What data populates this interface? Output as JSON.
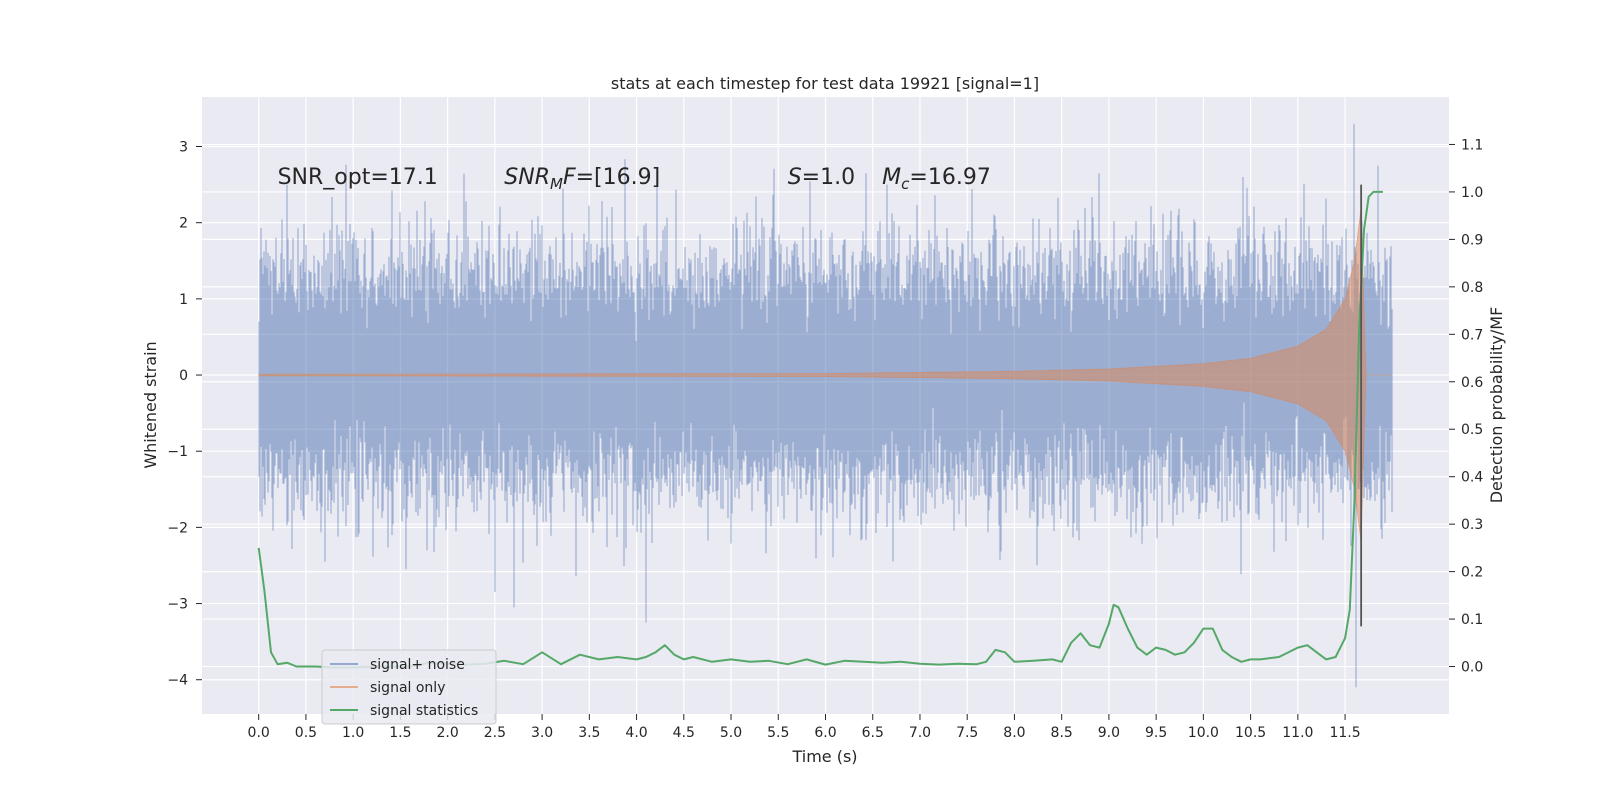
{
  "chart_data": {
    "type": "line",
    "title": "stats at each timestep for test data 19921 [signal=1]",
    "xlabel": "Time (s)",
    "ylabel": "Whitened strain",
    "y2label": "Detection probability/MF",
    "xlim": [
      -0.6,
      12.6
    ],
    "ylim": [
      -4.45,
      3.65
    ],
    "y2lim": [
      -0.1,
      1.2
    ],
    "x_ticks": [
      0.0,
      0.5,
      1.0,
      1.5,
      2.0,
      2.5,
      3.0,
      3.5,
      4.0,
      4.5,
      5.0,
      5.5,
      6.0,
      6.5,
      7.0,
      7.5,
      8.0,
      8.5,
      9.0,
      9.5,
      10.0,
      10.5,
      11.0,
      11.5
    ],
    "x_tick_labels": [
      "0.0",
      "0.5",
      "1.0",
      "1.5",
      "2.0",
      "2.5",
      "3.0",
      "3.5",
      "4.0",
      "4.5",
      "5.0",
      "5.5",
      "6.0",
      "6.5",
      "7.0",
      "7.5",
      "8.0",
      "8.5",
      "9.0",
      "9.5",
      "10.0",
      "10.5",
      "11.0",
      "11.5"
    ],
    "y_ticks": [
      -4,
      -3,
      -2,
      -1,
      0,
      1,
      2,
      3
    ],
    "y_tick_labels": [
      "−4",
      "−3",
      "−2",
      "−1",
      "0",
      "1",
      "2",
      "3"
    ],
    "y2_ticks": [
      0.0,
      0.1,
      0.2,
      0.3,
      0.4,
      0.5,
      0.6,
      0.7,
      0.8,
      0.9,
      1.0,
      1.1
    ],
    "y2_tick_labels": [
      "0.0",
      "0.1",
      "0.2",
      "0.3",
      "0.4",
      "0.5",
      "0.6",
      "0.7",
      "0.8",
      "0.9",
      "1.0",
      "1.1"
    ],
    "grid": true,
    "legend_position": "lower-left",
    "colors": {
      "background": "#eaeaf2",
      "grid": "#ffffff",
      "signal_noise": "#4c72b0",
      "signal_only": "#dd8452",
      "statistics": "#55a868",
      "marker_line": "#555555"
    },
    "annotations": [
      {
        "text": "SNR_opt=17.1",
        "x": 0.2,
        "y": 2.6
      },
      {
        "text": "SNR_MF=[16.9]",
        "x": 2.6,
        "y": 2.6
      },
      {
        "text": "S=1.0",
        "x": 5.6,
        "y": 2.6
      },
      {
        "text": "M_c=16.97",
        "x": 6.6,
        "y": 2.6
      }
    ],
    "marker_line": {
      "x": 11.67,
      "y_from": -3.3,
      "y_to": 2.5
    },
    "series": [
      {
        "name": "signal+ noise",
        "axis": "left",
        "t_range": [
          0.0,
          12.0
        ],
        "sample_rate": 2048,
        "noise_std": 0.72,
        "min": -4.1,
        "max": 3.3,
        "spikes": [
          {
            "x": 0.3,
            "y": 2.5
          },
          {
            "x": 0.7,
            "y": -2.45
          },
          {
            "x": 2.5,
            "y": -2.85
          },
          {
            "x": 2.7,
            "y": -3.05
          },
          {
            "x": 4.1,
            "y": -3.25
          },
          {
            "x": 6.55,
            "y": -2.95
          },
          {
            "x": 6.65,
            "y": 2.5
          },
          {
            "x": 8.9,
            "y": 2.65
          },
          {
            "x": 9.6,
            "y": -2.65
          },
          {
            "x": 11.6,
            "y": 3.3
          },
          {
            "x": 11.62,
            "y": -4.1
          },
          {
            "x": 11.85,
            "y": 2.75
          }
        ]
      },
      {
        "name": "signal only",
        "axis": "left",
        "t_range": [
          0.0,
          12.0
        ],
        "merger_time": 11.67,
        "amplitude_envelope": [
          {
            "x": 0.0,
            "y": 0.01
          },
          {
            "x": 6.0,
            "y": 0.02
          },
          {
            "x": 8.0,
            "y": 0.05
          },
          {
            "x": 9.0,
            "y": 0.08
          },
          {
            "x": 10.0,
            "y": 0.15
          },
          {
            "x": 10.5,
            "y": 0.22
          },
          {
            "x": 11.0,
            "y": 0.38
          },
          {
            "x": 11.3,
            "y": 0.6
          },
          {
            "x": 11.5,
            "y": 1.0
          },
          {
            "x": 11.6,
            "y": 1.5
          },
          {
            "x": 11.67,
            "y": 2.2
          },
          {
            "x": 11.72,
            "y": 0.0
          }
        ]
      },
      {
        "name": "signal statistics",
        "axis": "right",
        "x": [
          0.0,
          0.06,
          0.13,
          0.2,
          0.3,
          0.4,
          0.5,
          0.6,
          0.8,
          1.0,
          1.2,
          1.4,
          1.6,
          1.8,
          2.0,
          2.2,
          2.4,
          2.6,
          2.8,
          3.0,
          3.2,
          3.4,
          3.6,
          3.8,
          4.0,
          4.1,
          4.2,
          4.3,
          4.4,
          4.5,
          4.6,
          4.8,
          5.0,
          5.2,
          5.4,
          5.6,
          5.8,
          6.0,
          6.2,
          6.4,
          6.6,
          6.8,
          7.0,
          7.2,
          7.4,
          7.6,
          7.7,
          7.8,
          7.9,
          8.0,
          8.2,
          8.4,
          8.5,
          8.6,
          8.7,
          8.8,
          8.9,
          9.0,
          9.05,
          9.1,
          9.2,
          9.3,
          9.4,
          9.5,
          9.6,
          9.7,
          9.8,
          9.9,
          10.0,
          10.1,
          10.2,
          10.3,
          10.4,
          10.5,
          10.6,
          10.8,
          11.0,
          11.1,
          11.2,
          11.3,
          11.4,
          11.5,
          11.55,
          11.6,
          11.65,
          11.7,
          11.75,
          11.8,
          11.85,
          11.9
        ],
        "values": [
          0.25,
          0.16,
          0.03,
          0.005,
          0.008,
          0.0,
          0.0,
          0.0,
          -0.002,
          -0.002,
          0.0,
          0.0,
          0.0,
          0.008,
          0.006,
          0.004,
          0.006,
          0.012,
          0.005,
          0.03,
          0.005,
          0.025,
          0.015,
          0.02,
          0.015,
          0.02,
          0.03,
          0.045,
          0.025,
          0.015,
          0.02,
          0.01,
          0.015,
          0.01,
          0.012,
          0.005,
          0.015,
          0.004,
          0.012,
          0.01,
          0.008,
          0.01,
          0.006,
          0.004,
          0.006,
          0.005,
          0.01,
          0.035,
          0.03,
          0.01,
          0.012,
          0.015,
          0.01,
          0.05,
          0.07,
          0.045,
          0.04,
          0.09,
          0.13,
          0.125,
          0.08,
          0.04,
          0.025,
          0.04,
          0.035,
          0.025,
          0.03,
          0.05,
          0.08,
          0.08,
          0.035,
          0.02,
          0.01,
          0.015,
          0.015,
          0.02,
          0.04,
          0.045,
          0.03,
          0.015,
          0.02,
          0.06,
          0.12,
          0.35,
          0.72,
          0.92,
          0.99,
          1.0,
          1.0,
          1.0
        ]
      }
    ]
  }
}
